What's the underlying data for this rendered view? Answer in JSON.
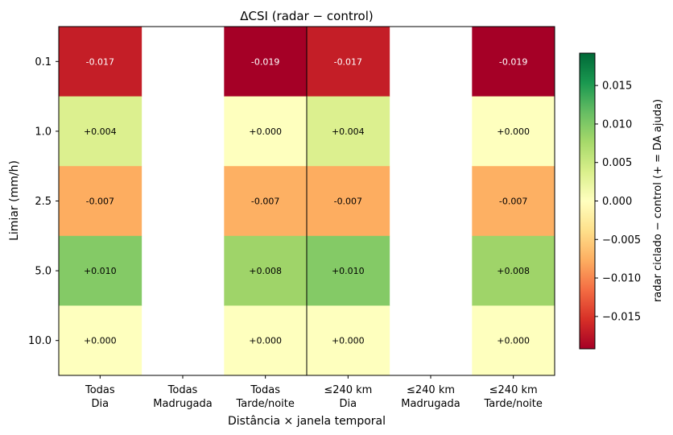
{
  "chart_data": {
    "type": "heatmap",
    "title": "ΔCSI  (radar − control)",
    "xlabel": "Distância × janela temporal",
    "ylabel": "Limiar (mm/h)",
    "colorbar_label": "radar ciclado − control  (+ = DA ajuda)",
    "colormap": "RdYlGn",
    "vmin": -0.0192,
    "vmax": 0.0192,
    "colorbar_ticks": [
      "−0.015",
      "−0.010",
      "−0.005",
      "0.000",
      "0.005",
      "0.010",
      "0.015"
    ],
    "colorbar_tick_values": [
      -0.015,
      -0.01,
      -0.005,
      0.0,
      0.005,
      0.01,
      0.015
    ],
    "columns": [
      {
        "line1": "Todas",
        "line2": "Dia"
      },
      {
        "line1": "Todas",
        "line2": "Madrugada"
      },
      {
        "line1": "Todas",
        "line2": "Tarde/noite"
      },
      {
        "line1": "≤240 km",
        "line2": "Dia"
      },
      {
        "line1": "≤240 km",
        "line2": "Madrugada"
      },
      {
        "line1": "≤240 km",
        "line2": "Tarde/noite"
      }
    ],
    "rows": [
      "0.1",
      "1.0",
      "2.5",
      "5.0",
      "10.0"
    ],
    "values": [
      [
        -0.017,
        null,
        -0.019,
        -0.017,
        null,
        -0.019
      ],
      [
        0.004,
        null,
        0.0,
        0.004,
        null,
        0.0
      ],
      [
        -0.007,
        null,
        -0.007,
        -0.007,
        null,
        -0.007
      ],
      [
        0.01,
        null,
        0.008,
        0.01,
        null,
        0.008
      ],
      [
        0.0,
        null,
        0.0,
        0.0,
        null,
        0.0
      ]
    ],
    "labels": [
      [
        "-0.017",
        "",
        "-0.019",
        "-0.017",
        "",
        "-0.019"
      ],
      [
        "+0.004",
        "",
        "+0.000",
        "+0.004",
        "",
        "+0.000"
      ],
      [
        "-0.007",
        "",
        "-0.007",
        "-0.007",
        "",
        "-0.007"
      ],
      [
        "+0.010",
        "",
        "+0.008",
        "+0.010",
        "",
        "+0.008"
      ],
      [
        "+0.000",
        "",
        "+0.000",
        "+0.000",
        "",
        "+0.000"
      ]
    ],
    "cell_colors": [
      [
        "#c41e27",
        "",
        "#a50026",
        "#c41e27",
        "",
        "#a50026"
      ],
      [
        "#dcf08f",
        "",
        "#feffbe",
        "#dcf08f",
        "",
        "#feffbe"
      ],
      [
        "#fdad60",
        "",
        "#fdb063",
        "#fdad60",
        "",
        "#fdb063"
      ],
      [
        "#84ca66",
        "",
        "#9fd469",
        "#84ca66",
        "",
        "#9fd469"
      ],
      [
        "#feffbe",
        "",
        "#feffbe",
        "#feffbe",
        "",
        "#feffbe"
      ]
    ],
    "light_text_rows": [
      0
    ],
    "separator_after_column": 2
  }
}
